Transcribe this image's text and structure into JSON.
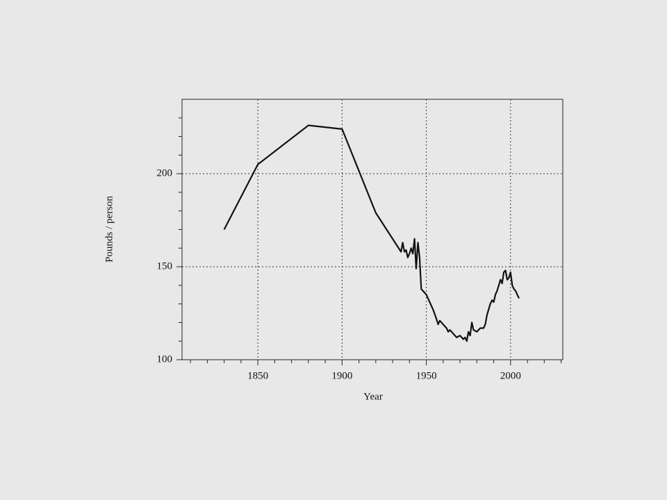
{
  "chart_data": {
    "type": "line",
    "x_label": "Year",
    "y_label": "Pounds / person",
    "color": "#111111",
    "grid": true,
    "grid_style": "dotted",
    "xlim": [
      1805,
      2031
    ],
    "ylim": [
      100,
      240
    ],
    "xticks": [
      1850,
      1900,
      1950,
      2000
    ],
    "yticks": [
      100,
      150,
      200
    ],
    "xminorticks": [
      1810,
      1820,
      1830,
      1840,
      1860,
      1870,
      1880,
      1890,
      1910,
      1920,
      1930,
      1940,
      1960,
      1970,
      1980,
      1990,
      2010,
      2020,
      2030
    ],
    "yminorticks": [
      110,
      120,
      130,
      140,
      160,
      170,
      180,
      190,
      210,
      220,
      230
    ],
    "x": [
      1830,
      1850,
      1880,
      1900,
      1920,
      1935,
      1936,
      1937,
      1938,
      1939,
      1940,
      1941,
      1942,
      1943,
      1944,
      1945,
      1946,
      1947,
      1948,
      1950,
      1952,
      1954,
      1956,
      1957,
      1958,
      1960,
      1962,
      1963,
      1964,
      1966,
      1968,
      1970,
      1972,
      1973,
      1974,
      1975,
      1976,
      1977,
      1978,
      1980,
      1982,
      1984,
      1985,
      1986,
      1988,
      1989,
      1990,
      1991,
      1992,
      1993,
      1994,
      1995,
      1996,
      1997,
      1998,
      1999,
      2000,
      2001,
      2002,
      2003,
      2004,
      2005
    ],
    "values": [
      170,
      205,
      226,
      224,
      179,
      158,
      163,
      158,
      159,
      155,
      157,
      160,
      157,
      165,
      149,
      163,
      155,
      138,
      137,
      135,
      131,
      127,
      122,
      119,
      121,
      119,
      117,
      115,
      116,
      114,
      112,
      113,
      111,
      112,
      110,
      115,
      113,
      120,
      116,
      115,
      117,
      117,
      119,
      124,
      130,
      132,
      131,
      135,
      137,
      140,
      143,
      141,
      147,
      148,
      143,
      144,
      147,
      140,
      138,
      137,
      135,
      133
    ]
  }
}
